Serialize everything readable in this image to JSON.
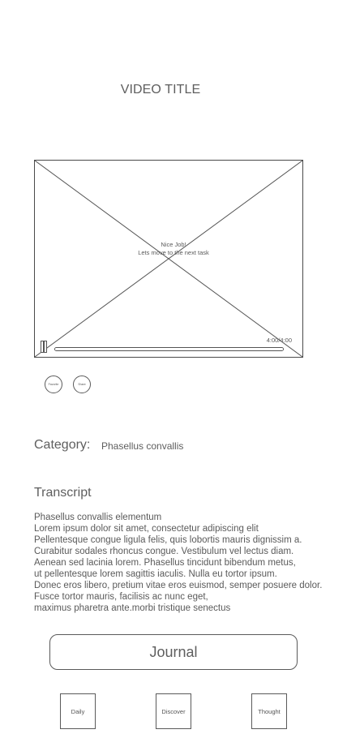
{
  "video": {
    "title": "VIDEO TITLE",
    "message_line1": "Nice Job!",
    "message_line2": "Lets move to the next task",
    "time": "4:00/4:00",
    "progress": 1.0
  },
  "actions": {
    "favorite_label": "Favorite",
    "share_label": "Share"
  },
  "category": {
    "label": "Category:",
    "value": "Phasellus convallis"
  },
  "transcript": {
    "heading": "Transcript",
    "lines": [
      "Phasellus convallis elementum",
      "Lorem ipsum dolor sit amet, consectetur adipiscing elit",
      "Pellentesque congue ligula felis, quis lobortis mauris dignissim a.",
      "Curabitur sodales rhoncus congue. Vestibulum vel lectus diam.",
      "Aenean sed lacinia lorem. Phasellus tincidunt bibendum metus,",
      "ut pellentesque lorem sagittis iaculis. Nulla eu tortor ipsum.",
      "Donec eros libero, pretium vitae eros euismod, semper posuere dolor.",
      "Fusce tortor mauris, facilisis ac nunc eget,",
      "maximus pharetra ante.morbi tristique senectus"
    ]
  },
  "journal": {
    "label": "Journal"
  },
  "bottom_nav": {
    "daily": "Daily",
    "discover": "Discover",
    "thought": "Thought"
  }
}
